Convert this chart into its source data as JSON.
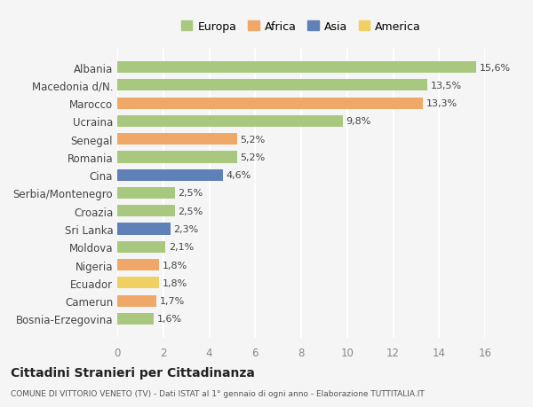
{
  "categories": [
    "Bosnia-Erzegovina",
    "Camerun",
    "Ecuador",
    "Nigeria",
    "Moldova",
    "Sri Lanka",
    "Croazia",
    "Serbia/Montenegro",
    "Cina",
    "Romania",
    "Senegal",
    "Ucraina",
    "Marocco",
    "Macedonia d/N.",
    "Albania"
  ],
  "values": [
    1.6,
    1.7,
    1.8,
    1.8,
    2.1,
    2.3,
    2.5,
    2.5,
    4.6,
    5.2,
    5.2,
    9.8,
    13.3,
    13.5,
    15.6
  ],
  "labels": [
    "1,6%",
    "1,7%",
    "1,8%",
    "1,8%",
    "2,1%",
    "2,3%",
    "2,5%",
    "2,5%",
    "4,6%",
    "5,2%",
    "5,2%",
    "9,8%",
    "13,3%",
    "13,5%",
    "15,6%"
  ],
  "colors": [
    "#a8c880",
    "#f0a868",
    "#f0d060",
    "#f0a868",
    "#a8c880",
    "#6080b8",
    "#a8c880",
    "#a8c880",
    "#6080b8",
    "#a8c880",
    "#f0a868",
    "#a8c880",
    "#f0a868",
    "#a8c880",
    "#a8c880"
  ],
  "legend_labels": [
    "Europa",
    "Africa",
    "Asia",
    "America"
  ],
  "legend_colors": [
    "#a8c880",
    "#f0a868",
    "#6080b8",
    "#f0d060"
  ],
  "title": "Cittadini Stranieri per Cittadinanza",
  "subtitle": "COMUNE DI VITTORIO VENETO (TV) - Dati ISTAT al 1° gennaio di ogni anno - Elaborazione TUTTITALIA.IT",
  "xlim": [
    0,
    16
  ],
  "xticks": [
    0,
    2,
    4,
    6,
    8,
    10,
    12,
    14,
    16
  ],
  "bg_color": "#f5f5f5",
  "grid_color": "#ffffff",
  "bar_height": 0.65
}
